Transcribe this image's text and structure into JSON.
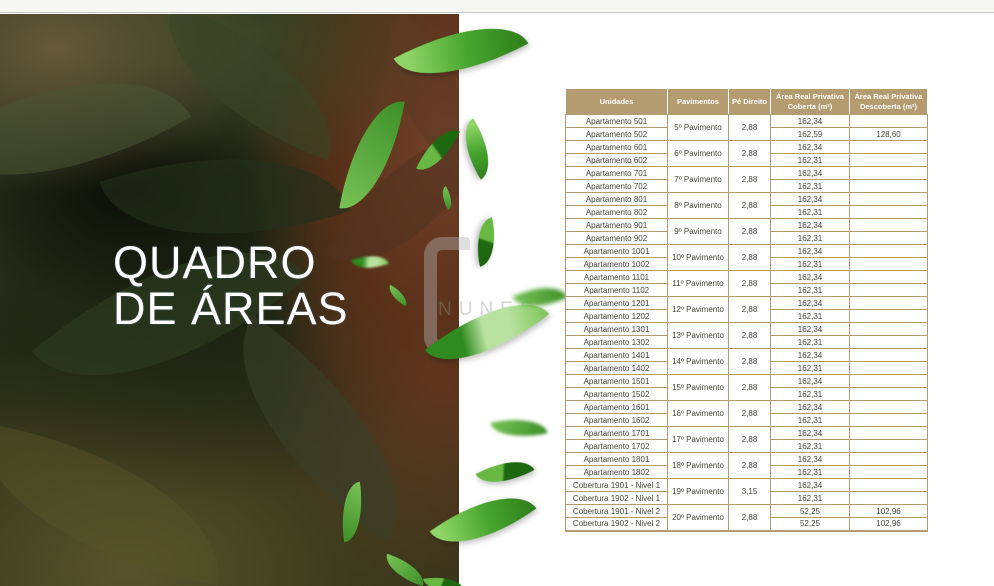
{
  "hero": {
    "title_line1": "QUADRO",
    "title_line2": "DE ÁREAS",
    "watermark_text": "NUNES"
  },
  "colors": {
    "gold": "#b49c70",
    "header_text": "#ffffff",
    "body_text": "#45443c"
  },
  "table": {
    "headers": [
      "Unidades",
      "Pavimentos",
      "Pé Direito",
      "Área Real Privativa Coberta (m²)",
      "Área Real Privativa Descoberta (m²)"
    ],
    "groups": [
      {
        "pavimento": "5º Pavimento",
        "pe_direito": "2,88",
        "units": [
          {
            "unidade": "Apartamento 501",
            "coberta": "162,34",
            "descoberta": ""
          },
          {
            "unidade": "Apartamento 502",
            "coberta": "162,59",
            "descoberta": "128,60"
          }
        ]
      },
      {
        "pavimento": "6º Pavimento",
        "pe_direito": "2,88",
        "units": [
          {
            "unidade": "Apartamento 601",
            "coberta": "162,34",
            "descoberta": ""
          },
          {
            "unidade": "Apartamento 602",
            "coberta": "162,31",
            "descoberta": ""
          }
        ]
      },
      {
        "pavimento": "7º Pavimento",
        "pe_direito": "2,88",
        "units": [
          {
            "unidade": "Apartamento 701",
            "coberta": "162,34",
            "descoberta": ""
          },
          {
            "unidade": "Apartamento 702",
            "coberta": "162,31",
            "descoberta": ""
          }
        ]
      },
      {
        "pavimento": "8º Pavimento",
        "pe_direito": "2,88",
        "units": [
          {
            "unidade": "Apartamento 801",
            "coberta": "162,34",
            "descoberta": ""
          },
          {
            "unidade": "Apartamento 802",
            "coberta": "162,31",
            "descoberta": ""
          }
        ]
      },
      {
        "pavimento": "9º Pavimento",
        "pe_direito": "2,88",
        "units": [
          {
            "unidade": "Apartamento 901",
            "coberta": "162,34",
            "descoberta": ""
          },
          {
            "unidade": "Apartamento 902",
            "coberta": "162,31",
            "descoberta": ""
          }
        ]
      },
      {
        "pavimento": "10º Pavimento",
        "pe_direito": "2,88",
        "units": [
          {
            "unidade": "Apartamento 1001",
            "coberta": "162,34",
            "descoberta": ""
          },
          {
            "unidade": "Apartamento 1002",
            "coberta": "162,31",
            "descoberta": ""
          }
        ]
      },
      {
        "pavimento": "11º Pavimento",
        "pe_direito": "2,88",
        "units": [
          {
            "unidade": "Apartamento 1101",
            "coberta": "162,34",
            "descoberta": ""
          },
          {
            "unidade": "Apartamento 1102",
            "coberta": "162,31",
            "descoberta": ""
          }
        ]
      },
      {
        "pavimento": "12º Pavimento",
        "pe_direito": "2,88",
        "units": [
          {
            "unidade": "Apartamento 1201",
            "coberta": "162,34",
            "descoberta": ""
          },
          {
            "unidade": "Apartamento 1202",
            "coberta": "162,31",
            "descoberta": ""
          }
        ]
      },
      {
        "pavimento": "13º Pavimento",
        "pe_direito": "2,88",
        "units": [
          {
            "unidade": "Apartamento 1301",
            "coberta": "162,34",
            "descoberta": ""
          },
          {
            "unidade": "Apartamento 1302",
            "coberta": "162,31",
            "descoberta": ""
          }
        ]
      },
      {
        "pavimento": "14º Pavimento",
        "pe_direito": "2,88",
        "units": [
          {
            "unidade": "Apartamento 1401",
            "coberta": "162,34",
            "descoberta": ""
          },
          {
            "unidade": "Apartamento 1402",
            "coberta": "162,31",
            "descoberta": ""
          }
        ]
      },
      {
        "pavimento": "15º Pavimento",
        "pe_direito": "2,88",
        "units": [
          {
            "unidade": "Apartamento 1501",
            "coberta": "162,34",
            "descoberta": ""
          },
          {
            "unidade": "Apartamento 1502",
            "coberta": "162,31",
            "descoberta": ""
          }
        ]
      },
      {
        "pavimento": "16º Pavimento",
        "pe_direito": "2,88",
        "units": [
          {
            "unidade": "Apartamento 1601",
            "coberta": "162,34",
            "descoberta": ""
          },
          {
            "unidade": "Apartamento 1602",
            "coberta": "162,31",
            "descoberta": ""
          }
        ]
      },
      {
        "pavimento": "17º Pavimento",
        "pe_direito": "2,88",
        "units": [
          {
            "unidade": "Apartamento 1701",
            "coberta": "162,34",
            "descoberta": ""
          },
          {
            "unidade": "Apartamento 1702",
            "coberta": "162,31",
            "descoberta": ""
          }
        ]
      },
      {
        "pavimento": "18º Pavimento",
        "pe_direito": "2,88",
        "units": [
          {
            "unidade": "Apartamento 1801",
            "coberta": "162,34",
            "descoberta": ""
          },
          {
            "unidade": "Apartamento 1802",
            "coberta": "162,31",
            "descoberta": ""
          }
        ]
      },
      {
        "pavimento": "19º Pavimento",
        "pe_direito": "3,15",
        "units": [
          {
            "unidade": "Cobertura 1901 - Nivel 1",
            "coberta": "162,34",
            "descoberta": ""
          },
          {
            "unidade": "Cobertura 1902 - Nivel 1",
            "coberta": "162,31",
            "descoberta": ""
          }
        ]
      },
      {
        "pavimento": "20º Pavimento",
        "pe_direito": "2,88",
        "units": [
          {
            "unidade": "Cobertura 1901 - Nivel 2",
            "coberta": "52,25",
            "descoberta": "102,96"
          },
          {
            "unidade": "Cobertura 1902 - Nivel 2",
            "coberta": "52,25",
            "descoberta": "102,96"
          }
        ]
      }
    ]
  }
}
